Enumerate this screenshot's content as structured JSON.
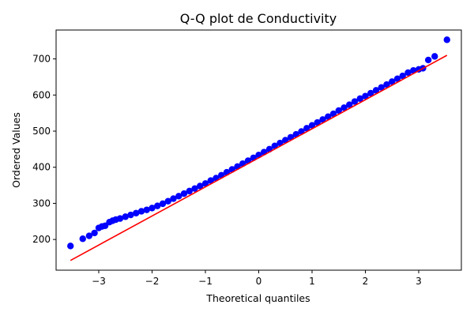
{
  "chart_data": {
    "type": "scatter",
    "title": "Q-Q plot de Conductivity",
    "xlabel": "Theoretical quantiles",
    "ylabel": "Ordered Values",
    "xlim": [
      -3.8,
      3.8
    ],
    "ylim": [
      115,
      780
    ],
    "xticks": [
      -3,
      -2,
      -1,
      0,
      1,
      2,
      3
    ],
    "yticks": [
      200,
      300,
      400,
      500,
      600,
      700
    ],
    "xtick_labels": [
      "−3",
      "−2",
      "−1",
      "0",
      "1",
      "2",
      "3"
    ],
    "ytick_labels": [
      "200",
      "300",
      "400",
      "500",
      "600",
      "700"
    ],
    "grid": false,
    "legend": "none",
    "marker_color": "#0000ff",
    "line_color": "#ff0000",
    "fit_line": {
      "x": [
        -3.53,
        3.53
      ],
      "y": [
        142,
        710
      ]
    },
    "series": [
      {
        "x": [
          -3.53,
          -3.3,
          -3.18,
          -3.08,
          -3.0,
          -2.94,
          -2.88,
          -2.8,
          -2.74,
          -2.68,
          -2.6,
          -2.5,
          -2.4,
          -2.3,
          -2.2,
          -2.1,
          -2.0,
          -1.9,
          -1.8,
          -1.7,
          -1.6,
          -1.5,
          -1.4,
          -1.3,
          -1.2,
          -1.1,
          -1.0,
          -0.9,
          -0.8,
          -0.7,
          -0.6,
          -0.5,
          -0.4,
          -0.3,
          -0.2,
          -0.1,
          0.0,
          0.1,
          0.2,
          0.3,
          0.4,
          0.5,
          0.6,
          0.7,
          0.8,
          0.9,
          1.0,
          1.1,
          1.2,
          1.3,
          1.4,
          1.5,
          1.6,
          1.7,
          1.8,
          1.9,
          2.0,
          2.1,
          2.2,
          2.3,
          2.4,
          2.5,
          2.6,
          2.7,
          2.8,
          2.9,
          3.0,
          3.08,
          3.18,
          3.3,
          3.53
        ],
        "y": [
          182,
          202,
          210,
          218,
          232,
          236,
          238,
          248,
          252,
          255,
          258,
          263,
          268,
          273,
          278,
          282,
          287,
          293,
          299,
          306,
          313,
          320,
          327,
          334,
          341,
          348,
          355,
          363,
          370,
          378,
          386,
          394,
          402,
          410,
          418,
          426,
          434,
          442,
          450,
          459,
          467,
          475,
          483,
          491,
          499,
          508,
          516,
          524,
          532,
          540,
          548,
          557,
          565,
          573,
          582,
          590,
          597,
          605,
          613,
          621,
          629,
          637,
          645,
          653,
          662,
          668,
          671,
          674,
          697,
          707,
          753
        ]
      }
    ]
  }
}
